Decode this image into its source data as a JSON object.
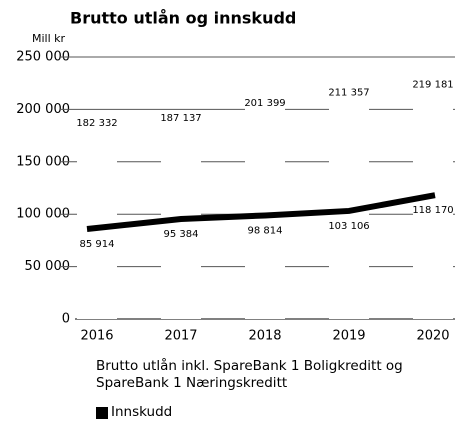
{
  "chart_data": {
    "type": "bar",
    "title": "Brutto utlån og innskudd",
    "y_label": "Mill kr",
    "categories": [
      "2016",
      "2017",
      "2018",
      "2019",
      "2020"
    ],
    "series": [
      {
        "name": "Brutto utlån inkl. SpareBank 1 Boligkreditt og SpareBank 1 Næringskreditt",
        "color": "#ffffff",
        "type": "bar",
        "values": [
          182332,
          187137,
          201399,
          211357,
          219181
        ],
        "value_labels": [
          "182 332",
          "187 137",
          "201 399",
          "211 357",
          "219 181"
        ]
      },
      {
        "name": "Innskudd",
        "color": "#000000",
        "type": "line",
        "values": [
          85914,
          95384,
          98814,
          103106,
          118170
        ],
        "value_labels": [
          "85 914",
          "95 384",
          "98 814",
          "103 106",
          "118 170"
        ]
      }
    ],
    "ylim": [
      0,
      250000
    ],
    "yticks": [
      0,
      {
        "value": 50000,
        "label": "50 000"
      },
      {
        "value": 100000,
        "label": "100 000"
      },
      {
        "value": 150000,
        "label": "150 000"
      },
      {
        "value": 200000,
        "label": "200 000"
      },
      {
        "value": 250000,
        "label": "250 000"
      }
    ],
    "grid": true
  }
}
